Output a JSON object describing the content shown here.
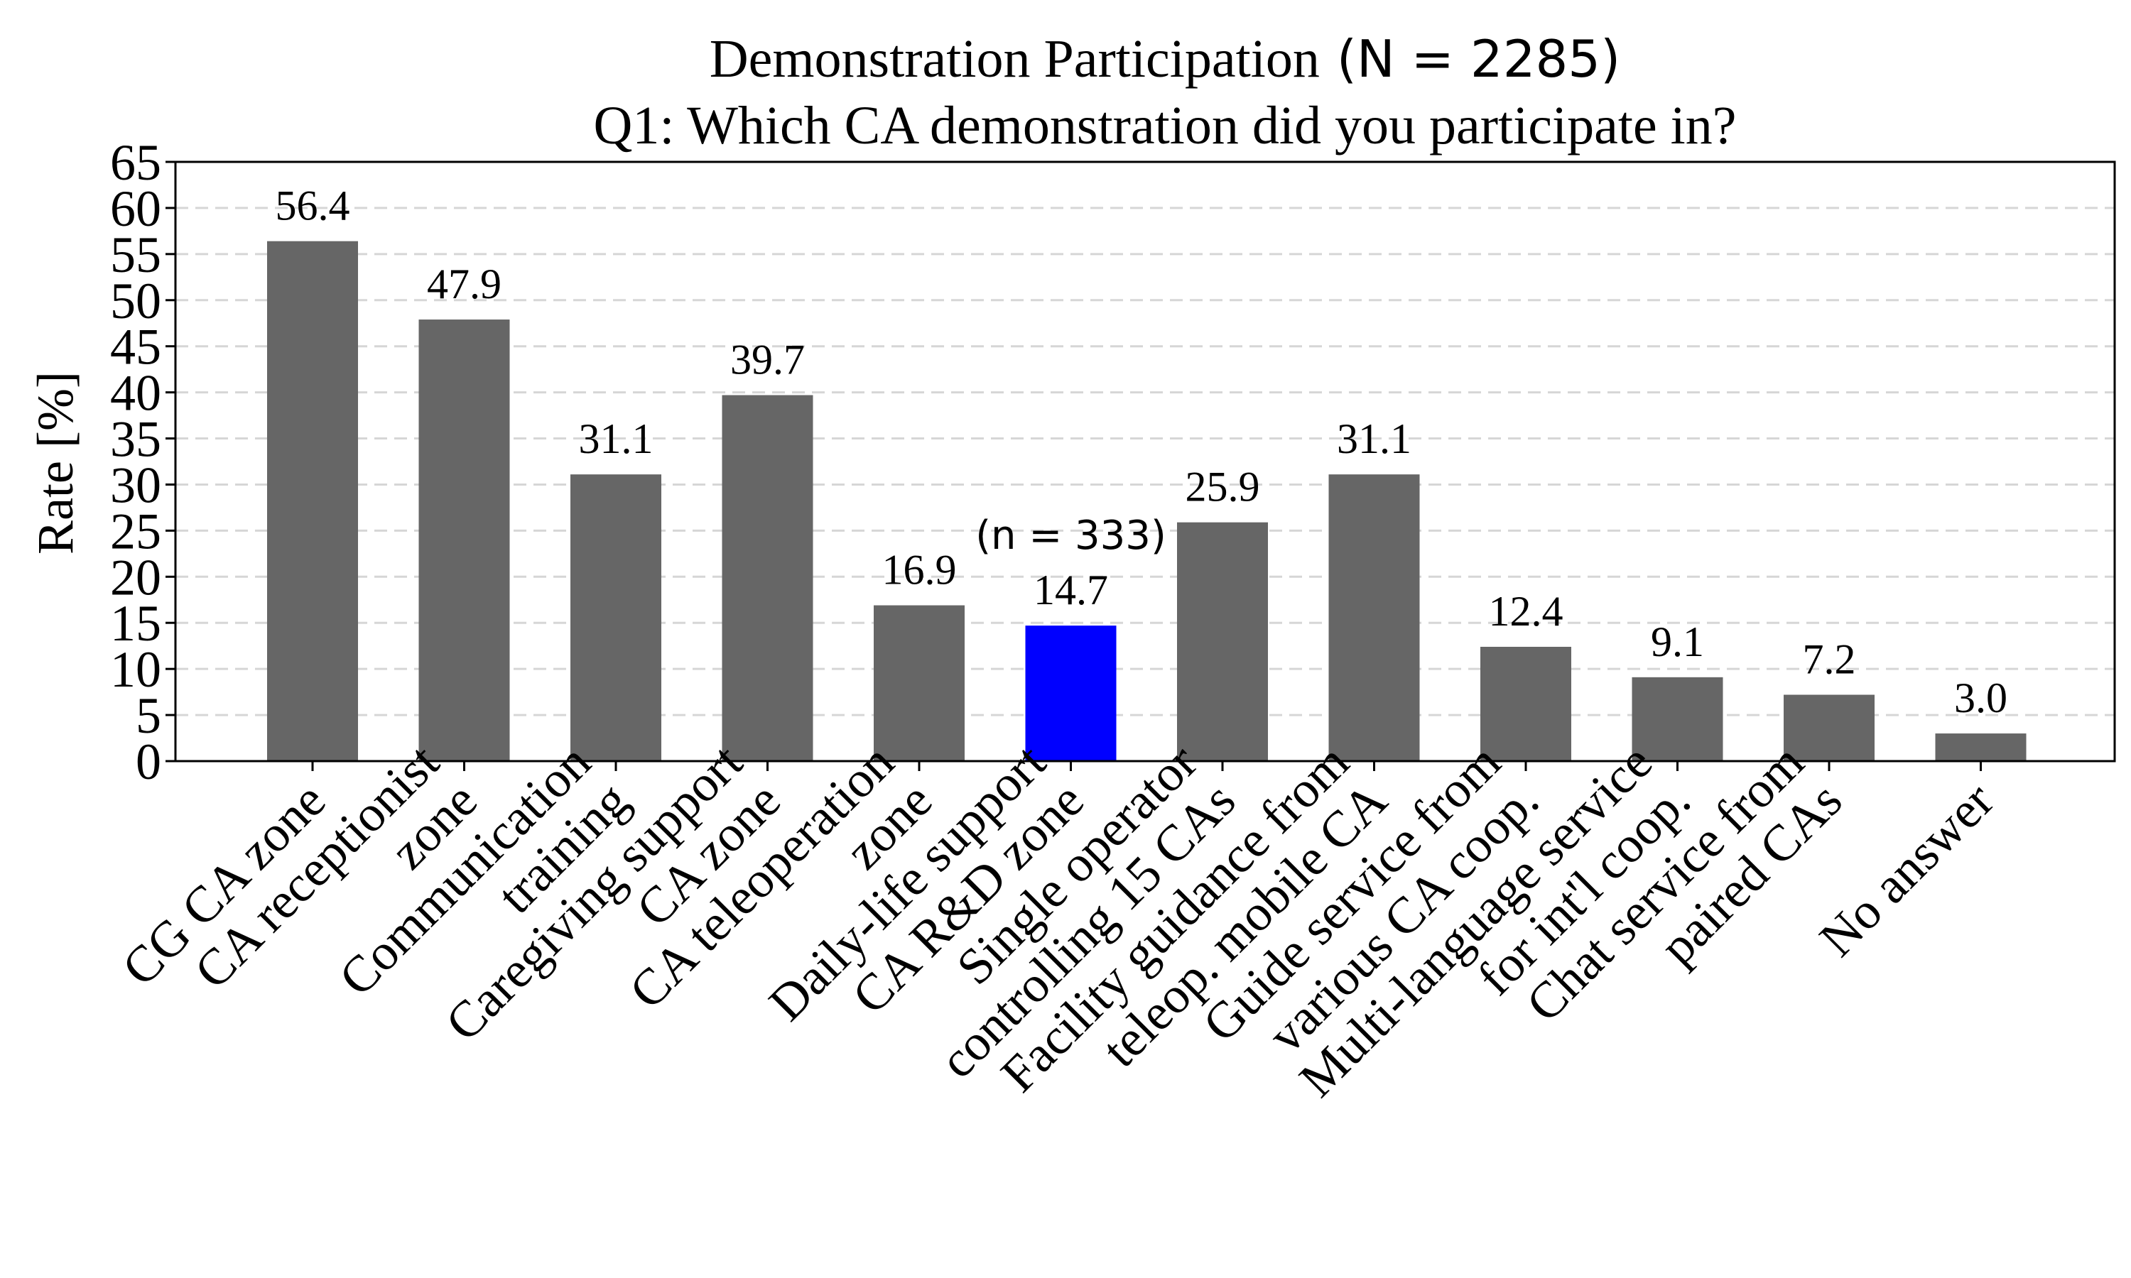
{
  "chart_data": {
    "type": "bar",
    "title": "Demonstration Participation",
    "title_math": "(N = 2285)",
    "subtitle": "Q1: Which CA demonstration did you participate in?",
    "xlabel": "",
    "ylabel": "Rate [%]",
    "ylim": [
      0,
      65
    ],
    "yticks": [
      0,
      5,
      10,
      15,
      20,
      25,
      30,
      35,
      40,
      45,
      50,
      55,
      60,
      65
    ],
    "grid": "y-dashed",
    "categories": [
      "CG CA zone",
      "CA receptionist\nzone",
      "Communication\ntraining",
      "Caregiving support\nCA zone",
      "CA teleoperation\nzone",
      "Daily-life support\nCA R&D zone",
      "Single operator\ncontrolling 15 CAs",
      "Facility guidance from\nteleop. mobile CA",
      "Guide service from\nvarious CA coop.",
      "Multi-language service\nfor int'l coop.",
      "Chat service from\npaired CAs",
      "No answer"
    ],
    "values": [
      56.4,
      47.9,
      31.1,
      39.7,
      16.9,
      14.7,
      25.9,
      31.1,
      12.4,
      9.1,
      7.2,
      3.0
    ],
    "value_labels": [
      "56.4",
      "47.9",
      "31.1",
      "39.7",
      "16.9",
      "14.7",
      "25.9",
      "31.1",
      "12.4",
      "9.1",
      "7.2",
      "3.0"
    ],
    "bar_color": "#666666",
    "highlight_index": 5,
    "highlight_color": "#0000ff",
    "annotation": {
      "index": 5,
      "text": "(n = 333)"
    }
  }
}
